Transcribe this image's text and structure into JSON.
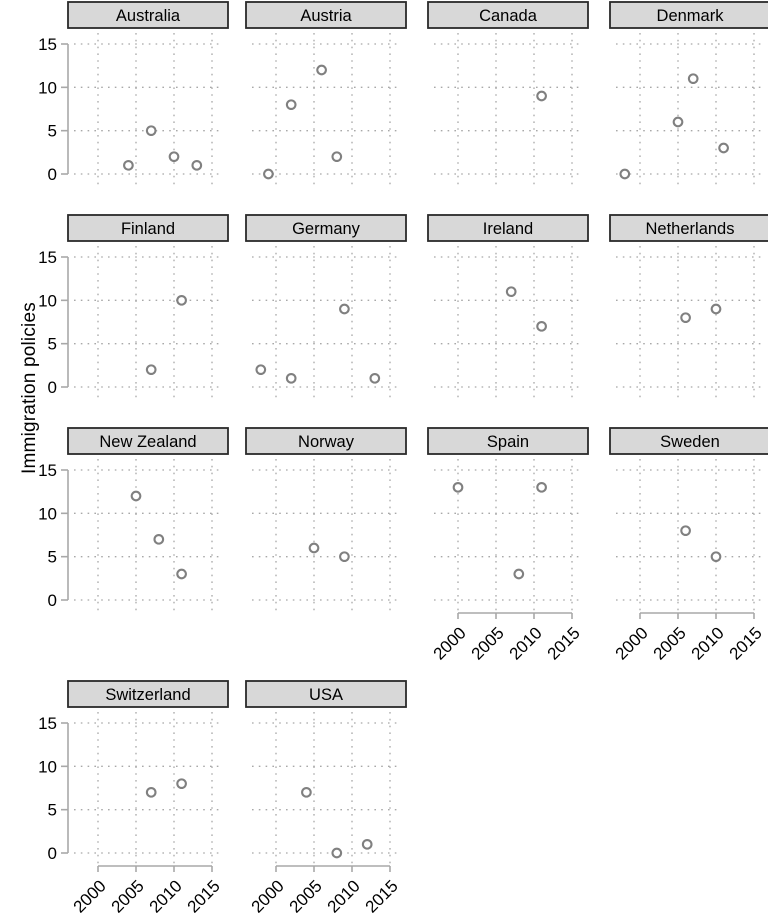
{
  "figure": {
    "ylabel": "Immigration policies",
    "colors": {
      "background": "#ffffff",
      "header_fill": "#d8d8d8",
      "header_border": "#2a2a2a",
      "axis": "#a8a8a8",
      "grid": "#a8a8a8",
      "marker": "#808080",
      "text": "#000000"
    }
  },
  "chart_data": {
    "type": "scatter",
    "title": "",
    "xlabel": "",
    "ylabel": "Immigration policies",
    "marker": "open-circle",
    "grid": "dotted",
    "legend": "none",
    "x_ticks": [
      2000,
      2005,
      2010,
      2015
    ],
    "y_ticks": [
      0,
      5,
      10,
      15
    ],
    "xlim": [
      1996.8,
      2016.1
    ],
    "ylim": [
      -1.6,
      16.3
    ],
    "facets": [
      {
        "title": "Australia",
        "points": [
          [
            2004,
            1
          ],
          [
            2007,
            5
          ],
          [
            2010,
            2
          ],
          [
            2013,
            1
          ]
        ]
      },
      {
        "title": "Austria",
        "points": [
          [
            1999,
            0
          ],
          [
            2002,
            8
          ],
          [
            2006,
            12
          ],
          [
            2008,
            2
          ]
        ]
      },
      {
        "title": "Canada",
        "points": [
          [
            2011,
            9
          ]
        ]
      },
      {
        "title": "Denmark",
        "points": [
          [
            1998,
            0
          ],
          [
            2005,
            6
          ],
          [
            2007,
            11
          ],
          [
            2011,
            3
          ]
        ]
      },
      {
        "title": "Finland",
        "points": [
          [
            2007,
            2
          ],
          [
            2011,
            10
          ]
        ]
      },
      {
        "title": "Germany",
        "points": [
          [
            1998,
            2
          ],
          [
            2002,
            1
          ],
          [
            2009,
            9
          ],
          [
            2013,
            1
          ]
        ]
      },
      {
        "title": "Ireland",
        "points": [
          [
            2007,
            11
          ],
          [
            2011,
            7
          ]
        ]
      },
      {
        "title": "Netherlands",
        "points": [
          [
            2006,
            8
          ],
          [
            2010,
            9
          ]
        ]
      },
      {
        "title": "New Zealand",
        "points": [
          [
            2005,
            12
          ],
          [
            2008,
            7
          ],
          [
            2011,
            3
          ]
        ]
      },
      {
        "title": "Norway",
        "points": [
          [
            2005,
            6
          ],
          [
            2009,
            5
          ]
        ]
      },
      {
        "title": "Spain",
        "points": [
          [
            2000,
            13
          ],
          [
            2008,
            3
          ],
          [
            2011,
            13
          ]
        ]
      },
      {
        "title": "Sweden",
        "points": [
          [
            2006,
            8
          ],
          [
            2010,
            5
          ]
        ]
      },
      {
        "title": "Switzerland",
        "points": [
          [
            2007,
            7
          ],
          [
            2011,
            8
          ]
        ]
      },
      {
        "title": "USA",
        "points": [
          [
            2004,
            7
          ],
          [
            2008,
            0
          ],
          [
            2012,
            1
          ]
        ]
      }
    ]
  }
}
